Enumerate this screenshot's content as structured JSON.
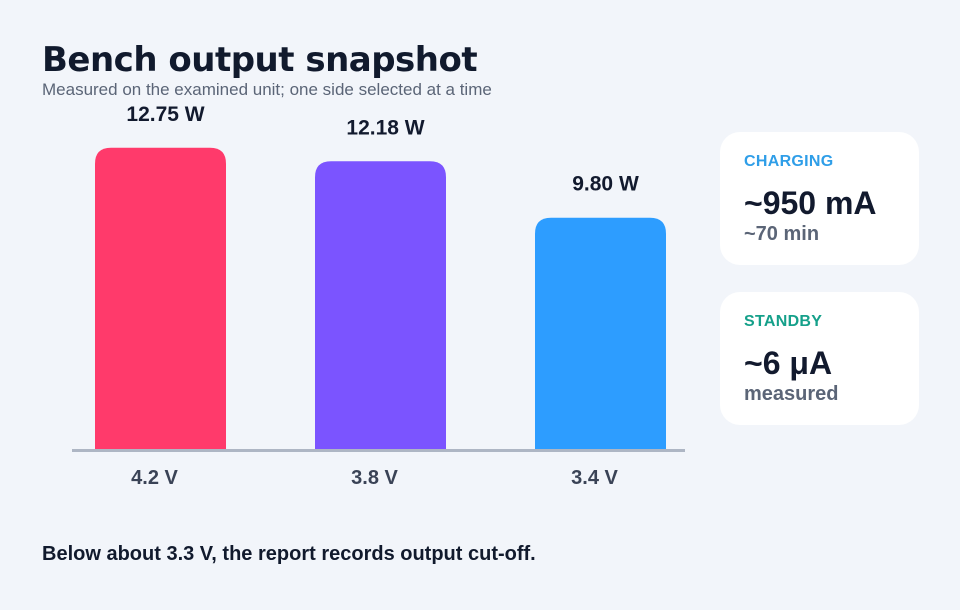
{
  "header": {
    "title": "Bench output snapshot",
    "subtitle": "Measured on the examined unit; one side selected at a time"
  },
  "chart_data": {
    "type": "bar",
    "categories": [
      "4.2 V",
      "3.8 V",
      "3.4 V"
    ],
    "values": [
      12.75,
      12.18,
      9.8
    ],
    "value_labels": [
      "12.75 W",
      "12.18 W",
      "9.80 W"
    ],
    "colors": [
      "#ff3a6b",
      "#7b54ff",
      "#2d9dff"
    ],
    "ylim": [
      0,
      13.5
    ],
    "grid": false,
    "legend": "none"
  },
  "cards": [
    {
      "label": "CHARGING",
      "value": "~950 mA",
      "sub": "~70 min",
      "accent": "#2f9ee8"
    },
    {
      "label": "STANDBY",
      "value": "~6 μA",
      "sub": "measured",
      "accent": "#15a08a"
    }
  ],
  "footnote": "Below about 3.3 V, the report records output cut-off."
}
